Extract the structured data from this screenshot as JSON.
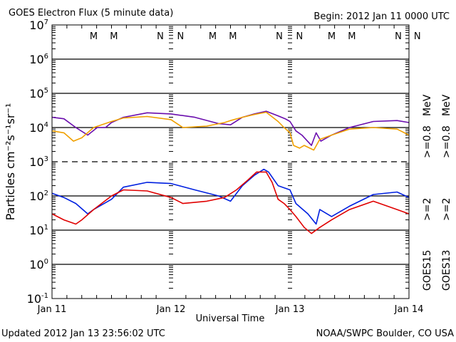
{
  "chart_data": {
    "type": "line",
    "title": "GOES Electron Flux (5 minute data)",
    "begin_label": "Begin: 2012 Jan 11 0000 UTC",
    "xlabel": "Universal Time",
    "ylabel": "Particles cm⁻²s⁻¹sr⁻¹",
    "yscale": "log",
    "ylim": [
      0.1,
      10000000
    ],
    "xlim_days": [
      0,
      3
    ],
    "x_tick_labels": [
      "Jan 11",
      "Jan 12",
      "Jan 13",
      "Jan 14"
    ],
    "y_tick_labels": [
      {
        "base": "10",
        "exp": "7"
      },
      {
        "base": "10",
        "exp": "6"
      },
      {
        "base": "10",
        "exp": "5"
      },
      {
        "base": "10",
        "exp": "4"
      },
      {
        "base": "10",
        "exp": "3"
      },
      {
        "base": "10",
        "exp": "2"
      },
      {
        "base": "10",
        "exp": "1"
      },
      {
        "base": "10",
        "exp": "0"
      },
      {
        "base": "10",
        "exp": "-1"
      }
    ],
    "reference_lines": [
      {
        "value": 1000000,
        "style": "solid"
      },
      {
        "value": 100000,
        "style": "solid"
      },
      {
        "value": 10000,
        "style": "solid"
      },
      {
        "value": 1000,
        "style": "dashed"
      },
      {
        "value": 100,
        "style": "solid"
      },
      {
        "value": 10,
        "style": "solid"
      },
      {
        "value": 1,
        "style": "solid"
      }
    ],
    "markers": [
      {
        "day": 0.35,
        "label": "M",
        "color": "#e00000"
      },
      {
        "day": 0.52,
        "label": "M",
        "color": "#0020e0"
      },
      {
        "day": 0.91,
        "label": "N",
        "color": "#e00000"
      },
      {
        "day": 1.08,
        "label": "N",
        "color": "#0020e0"
      },
      {
        "day": 1.35,
        "label": "M",
        "color": "#e00000"
      },
      {
        "day": 1.52,
        "label": "M",
        "color": "#0020e0"
      },
      {
        "day": 1.91,
        "label": "N",
        "color": "#e00000"
      },
      {
        "day": 2.08,
        "label": "N",
        "color": "#0020e0"
      },
      {
        "day": 2.35,
        "label": "M",
        "color": "#e00000"
      },
      {
        "day": 2.52,
        "label": "M",
        "color": "#0020e0"
      },
      {
        "day": 2.91,
        "label": "N",
        "color": "#e00000"
      },
      {
        "day": 3.07,
        "label": "N",
        "color": "#0020e0"
      }
    ],
    "series": [
      {
        "name": "GOES15 >=0.8 MeV",
        "color": "#6a0dad",
        "x": [
          0,
          0.1,
          0.2,
          0.3,
          0.38,
          0.45,
          0.5,
          0.6,
          0.8,
          1.0,
          1.2,
          1.4,
          1.5,
          1.6,
          1.7,
          1.8,
          1.9,
          1.96,
          2.0,
          2.05,
          2.1,
          2.18,
          2.22,
          2.26,
          2.35,
          2.5,
          2.7,
          2.9,
          3.0
        ],
        "y": [
          20000,
          18000,
          10000,
          6000,
          10000,
          10000,
          14000,
          20000,
          27000,
          25000,
          20000,
          13000,
          12000,
          20000,
          25000,
          30000,
          22000,
          18000,
          15000,
          8000,
          6000,
          3000,
          7000,
          4000,
          6000,
          10000,
          15000,
          16000,
          14000
        ]
      },
      {
        "name": "GOES13 >=0.8 MeV",
        "color": "#f0a000",
        "x": [
          0,
          0.1,
          0.18,
          0.25,
          0.35,
          0.5,
          0.6,
          0.8,
          1.0,
          1.1,
          1.3,
          1.45,
          1.5,
          1.6,
          1.7,
          1.8,
          1.9,
          1.95,
          2.0,
          2.03,
          2.08,
          2.12,
          2.2,
          2.25,
          2.35,
          2.5,
          2.7,
          2.9,
          3.0
        ],
        "y": [
          8000,
          7000,
          4000,
          5000,
          10000,
          15000,
          19000,
          21000,
          17000,
          10000,
          11000,
          14000,
          16000,
          20000,
          24000,
          28000,
          15000,
          10000,
          7000,
          3000,
          2500,
          3000,
          2200,
          4500,
          6000,
          9000,
          10000,
          9000,
          6000
        ]
      },
      {
        "name": "GOES15 >=2 MeV",
        "color": "#0020e0",
        "x": [
          0,
          0.1,
          0.2,
          0.3,
          0.35,
          0.5,
          0.6,
          0.8,
          1.0,
          1.2,
          1.4,
          1.5,
          1.6,
          1.7,
          1.78,
          1.82,
          1.9,
          2.0,
          2.05,
          2.15,
          2.22,
          2.25,
          2.35,
          2.5,
          2.7,
          2.9,
          3.0
        ],
        "y": [
          120,
          90,
          60,
          30,
          40,
          80,
          180,
          250,
          230,
          150,
          100,
          70,
          200,
          400,
          600,
          500,
          200,
          150,
          60,
          30,
          15,
          40,
          25,
          50,
          110,
          130,
          90
        ]
      },
      {
        "name": "GOES13 >=2 MeV",
        "color": "#e00000",
        "x": [
          0,
          0.1,
          0.2,
          0.25,
          0.35,
          0.5,
          0.6,
          0.8,
          1.0,
          1.1,
          1.3,
          1.45,
          1.55,
          1.65,
          1.72,
          1.8,
          1.85,
          1.9,
          1.95,
          2.0,
          2.05,
          2.12,
          2.18,
          2.25,
          2.35,
          2.5,
          2.7,
          2.9,
          3.0
        ],
        "y": [
          30,
          20,
          15,
          20,
          40,
          100,
          150,
          140,
          90,
          60,
          70,
          90,
          150,
          300,
          500,
          500,
          250,
          80,
          60,
          40,
          25,
          12,
          8,
          12,
          20,
          40,
          70,
          40,
          30
        ]
      }
    ],
    "legend": [
      {
        "text": "GOES15",
        "color": "#000000"
      },
      {
        "text": ">=2",
        "color": "#0020e0"
      },
      {
        "text": ">=0.8",
        "color": "#6a0dad"
      },
      {
        "text": "MeV",
        "color": "#000000"
      },
      {
        "text": "GOES13",
        "color": "#000000"
      },
      {
        "text": ">=2",
        "color": "#e00000"
      },
      {
        "text": ">=0.8",
        "color": "#f0a000"
      },
      {
        "text": "MeV",
        "color": "#000000"
      }
    ],
    "legend_placement": "right",
    "footer_left": "Updated 2012 Jan 13 23:56:02 UTC",
    "footer_right": "NOAA/SWPC Boulder, CO USA"
  }
}
